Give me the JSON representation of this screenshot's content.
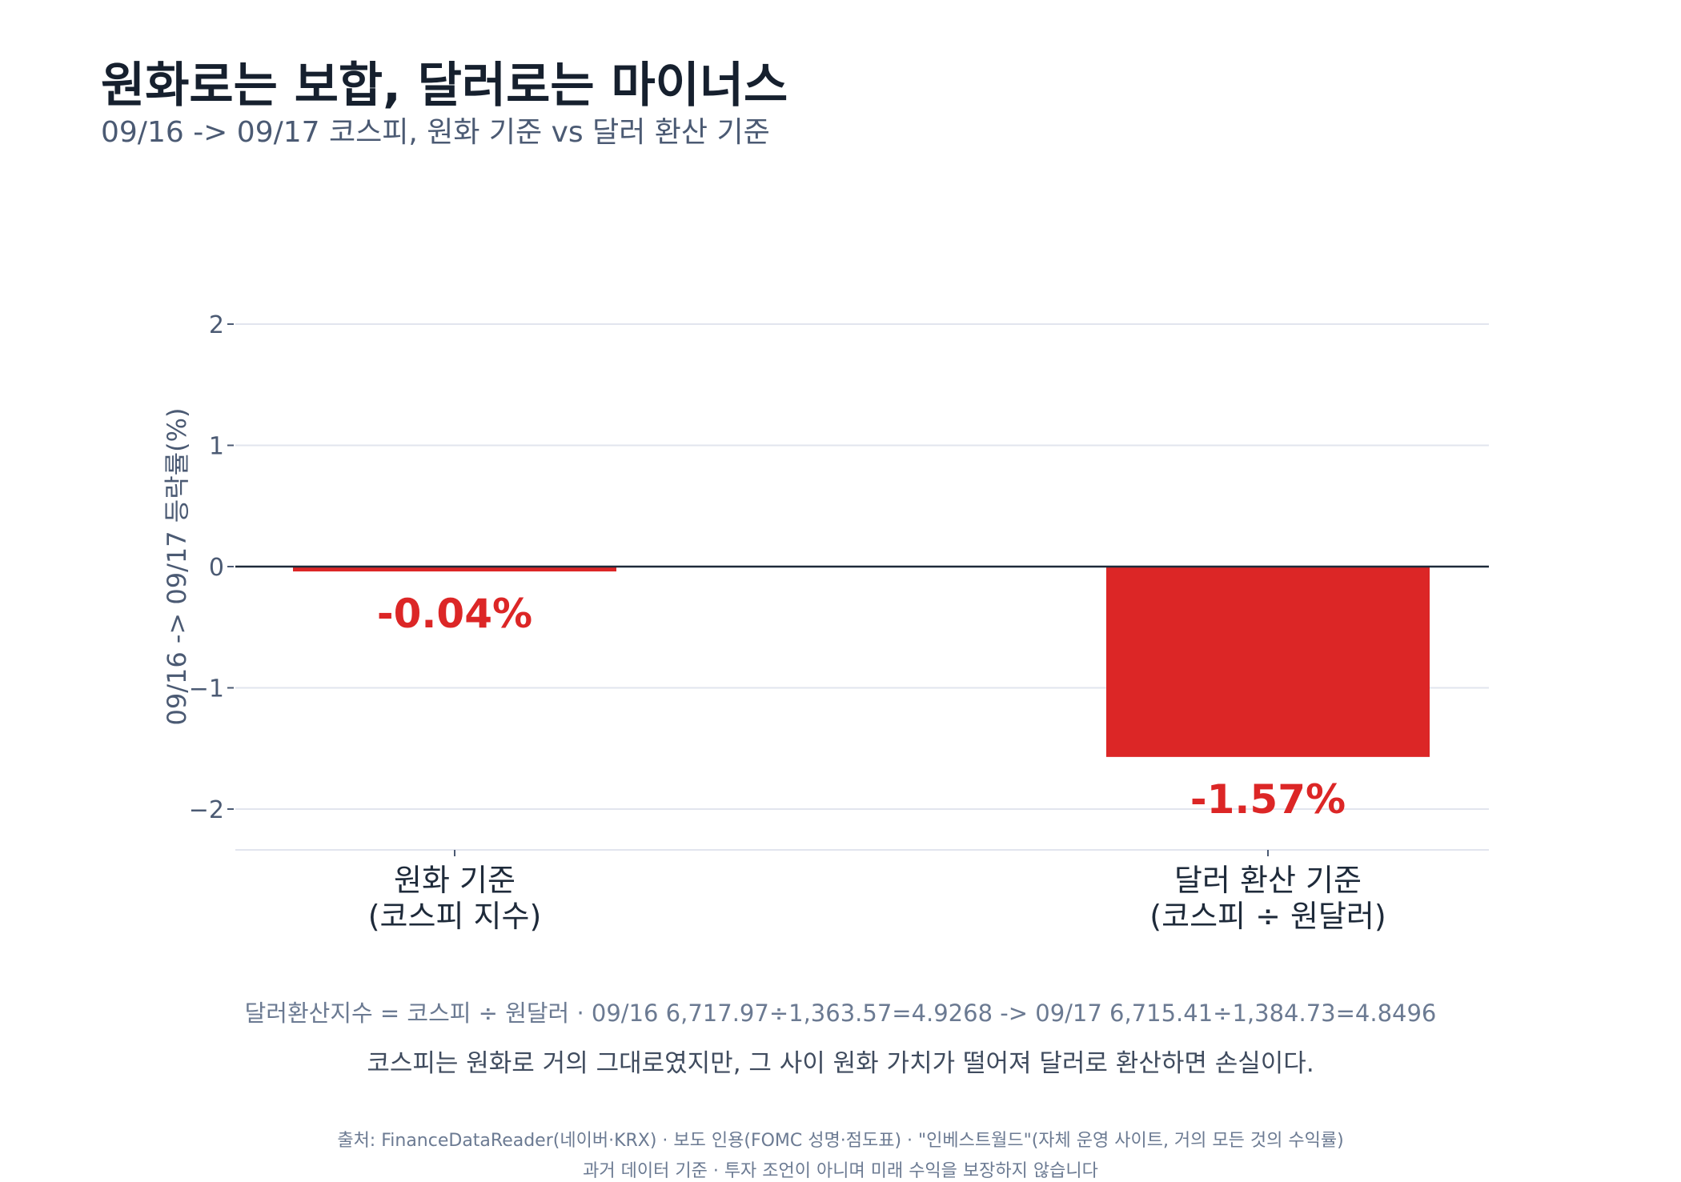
{
  "title": "원화로는 보합, 달러로는 마이너스",
  "subtitle": "09/16 -> 09/17 코스피, 원화 기준 vs 달러 환산 기준",
  "colors": {
    "bar": "#dc2626",
    "label": "#dc2626",
    "grid": "#e2e5ee",
    "zero_line": "#1e2a3a",
    "tick_text": "#4b5a73"
  },
  "chart_data": {
    "type": "bar",
    "categories": [
      "원화 기준\n(코스피 지수)",
      "달러 환산 기준\n(코스피 ÷ 원달러)"
    ],
    "values": [
      -0.04,
      -1.57
    ],
    "data_labels": [
      "-0.04%",
      "-1.57%"
    ],
    "ylabel": "09/16 -> 09/17 등락률(%)",
    "xlabel": "",
    "ylim": [
      -2.35,
      2.35
    ],
    "yticks": [
      2,
      1,
      0,
      -1,
      -2
    ],
    "ytick_labels": [
      "2",
      "1",
      "0",
      "−1",
      "−2"
    ],
    "grid": true,
    "legend": "none"
  },
  "notes": {
    "formula": "달러환산지수 = 코스피 ÷ 원달러 · 09/16 6,717.97÷1,363.57=4.9268 -> 09/17 6,715.41÷1,384.73=4.8496",
    "explanation": "코스피는 원화로 거의 그대로였지만, 그 사이 원화 가치가 떨어져 달러로 환산하면 손실이다."
  },
  "footer": {
    "source": "출처: FinanceDataReader(네이버·KRX) · 보도 인용(FOMC 성명·점도표) · \"인베스트월드\"(자체 운영 사이트, 거의 모든 것의 수익률)",
    "disclaimer": "과거 데이터 기준 · 투자 조언이 아니며 미래 수익을 보장하지 않습니다"
  }
}
